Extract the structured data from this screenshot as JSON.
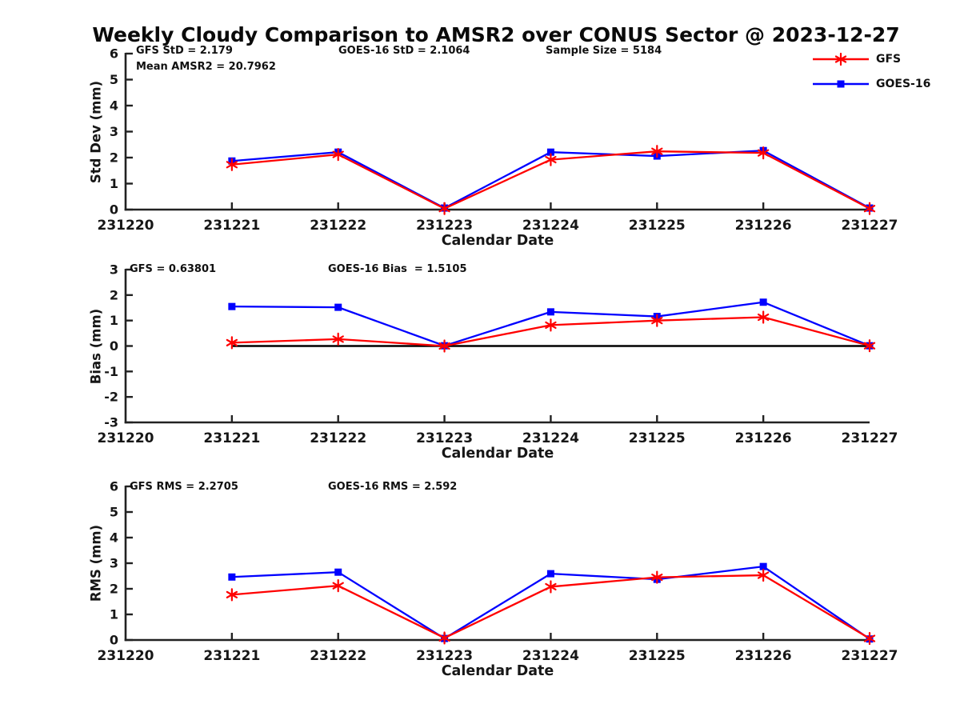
{
  "title": "Weekly Cloudy Comparison to AMSR2 over CONUS Sector @ 2023-12-27",
  "legend": {
    "items": [
      {
        "label": "GFS",
        "color": "#ff0000",
        "marker": "star"
      },
      {
        "label": "GOES-16",
        "color": "#0000ff",
        "marker": "square"
      }
    ]
  },
  "chart_data": [
    {
      "name": "std-dev",
      "type": "line",
      "ylabel": "Std Dev (mm)",
      "xlabel": "Calendar Date",
      "ylim": [
        0,
        6
      ],
      "yticks": [
        0,
        1,
        2,
        3,
        4,
        5,
        6
      ],
      "grid": false,
      "categories": [
        "231220",
        "231221",
        "231222",
        "231223",
        "231224",
        "231225",
        "231226",
        "231227"
      ],
      "x": [
        "231221",
        "231222",
        "231223",
        "231224",
        "231225",
        "231226",
        "231227"
      ],
      "series": [
        {
          "name": "GFS",
          "color": "#ff0000",
          "marker": "star",
          "values": [
            1.73,
            2.12,
            0.04,
            1.92,
            2.24,
            2.18,
            0.04
          ]
        },
        {
          "name": "GOES-16",
          "color": "#0000ff",
          "marker": "square",
          "values": [
            1.87,
            2.21,
            0.06,
            2.21,
            2.06,
            2.27,
            0.06
          ]
        }
      ],
      "zero_line": false,
      "annotations": [
        {
          "text": "GFS StD = 2.179"
        },
        {
          "text": "Mean AMSR2 = 20.7962"
        },
        {
          "text": "GOES-16 StD = 2.1064"
        },
        {
          "text": "Sample Size = 5184"
        }
      ]
    },
    {
      "name": "bias",
      "type": "line",
      "ylabel": "Bias (mm)",
      "xlabel": "Calendar Date",
      "ylim": [
        -3,
        3
      ],
      "yticks": [
        -3,
        -2,
        -1,
        0,
        1,
        2,
        3
      ],
      "grid": false,
      "categories": [
        "231220",
        "231221",
        "231222",
        "231223",
        "231224",
        "231225",
        "231226",
        "231227"
      ],
      "x": [
        "231221",
        "231222",
        "231223",
        "231224",
        "231225",
        "231226",
        "231227"
      ],
      "series": [
        {
          "name": "GFS",
          "color": "#ff0000",
          "marker": "star",
          "values": [
            0.13,
            0.27,
            0.0,
            0.82,
            1.0,
            1.13,
            0.01
          ]
        },
        {
          "name": "GOES-16",
          "color": "#0000ff",
          "marker": "square",
          "values": [
            1.55,
            1.52,
            0.01,
            1.34,
            1.16,
            1.72,
            0.01
          ]
        }
      ],
      "zero_line": true,
      "annotations": [
        {
          "text": "GFS = 0.63801"
        },
        {
          "text": "GOES-16 Bias  = 1.5105"
        }
      ]
    },
    {
      "name": "rms",
      "type": "line",
      "ylabel": "RMS (mm)",
      "xlabel": "Calendar Date",
      "ylim": [
        0,
        6
      ],
      "yticks": [
        0,
        1,
        2,
        3,
        4,
        5,
        6
      ],
      "grid": false,
      "categories": [
        "231220",
        "231221",
        "231222",
        "231223",
        "231224",
        "231225",
        "231226",
        "231227"
      ],
      "x": [
        "231221",
        "231222",
        "231223",
        "231224",
        "231225",
        "231226",
        "231227"
      ],
      "series": [
        {
          "name": "GFS",
          "color": "#ff0000",
          "marker": "star",
          "values": [
            1.77,
            2.12,
            0.08,
            2.08,
            2.45,
            2.53,
            0.06
          ]
        },
        {
          "name": "GOES-16",
          "color": "#0000ff",
          "marker": "square",
          "values": [
            2.46,
            2.65,
            0.06,
            2.59,
            2.37,
            2.87,
            0.04
          ]
        }
      ],
      "zero_line": false,
      "annotations": [
        {
          "text": "GFS RMS = 2.2705"
        },
        {
          "text": "GOES-16 RMS = 2.592"
        }
      ]
    }
  ]
}
